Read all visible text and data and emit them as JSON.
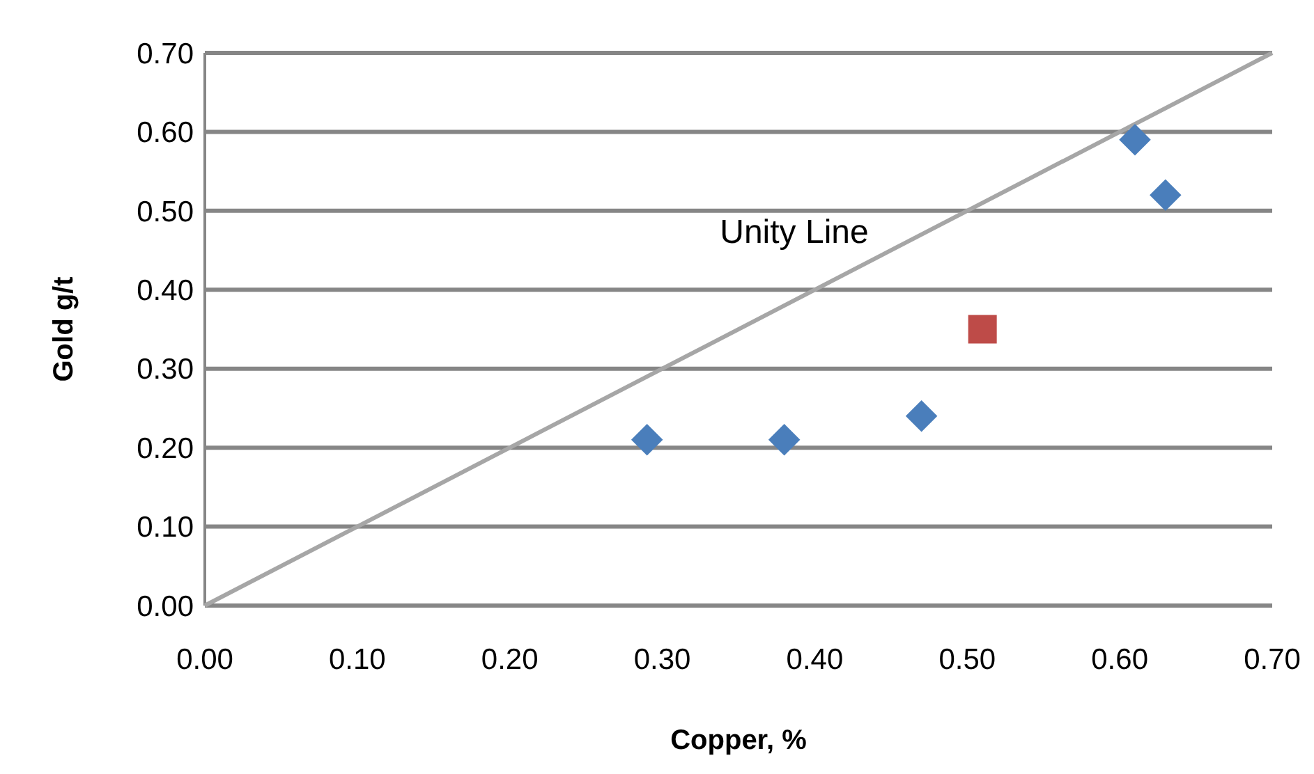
{
  "chart_data": {
    "type": "scatter",
    "xlabel": "Copper, %",
    "ylabel": "Gold g/t",
    "xlim": [
      0,
      0.7
    ],
    "ylim": [
      0,
      0.7
    ],
    "xticks": [
      {
        "value": 0,
        "label": "0.00"
      },
      {
        "value": 0.1,
        "label": "0.10"
      },
      {
        "value": 0.2,
        "label": "0.20"
      },
      {
        "value": 0.3,
        "label": "0.30"
      },
      {
        "value": 0.4,
        "label": "0.40"
      },
      {
        "value": 0.5,
        "label": "0.50"
      },
      {
        "value": 0.6,
        "label": "0.60"
      },
      {
        "value": 0.7,
        "label": "0.70"
      }
    ],
    "yticks": [
      {
        "value": 0,
        "label": "0.00"
      },
      {
        "value": 0.1,
        "label": "0.10"
      },
      {
        "value": 0.2,
        "label": "0.20"
      },
      {
        "value": 0.3,
        "label": "0.30"
      },
      {
        "value": 0.4,
        "label": "0.40"
      },
      {
        "value": 0.5,
        "label": "0.50"
      },
      {
        "value": 0.6,
        "label": "0.60"
      },
      {
        "value": 0.7,
        "label": "0.70"
      }
    ],
    "grid": "y",
    "annotations": [
      "Unity Line"
    ],
    "series": [
      {
        "type": "line",
        "color": "#a6a6a6",
        "marker": "none",
        "x": [
          0,
          0.7
        ],
        "values": [
          0,
          0.7
        ]
      },
      {
        "type": "scatter",
        "color": "#4a7ebb",
        "marker": "diamond",
        "x": [
          0.29,
          0.38,
          0.47,
          0.61,
          0.63
        ],
        "values": [
          0.21,
          0.21,
          0.24,
          0.59,
          0.52
        ]
      },
      {
        "type": "scatter",
        "color": "#be4b48",
        "marker": "square",
        "x": [
          0.51
        ],
        "values": [
          0.35
        ]
      }
    ]
  }
}
